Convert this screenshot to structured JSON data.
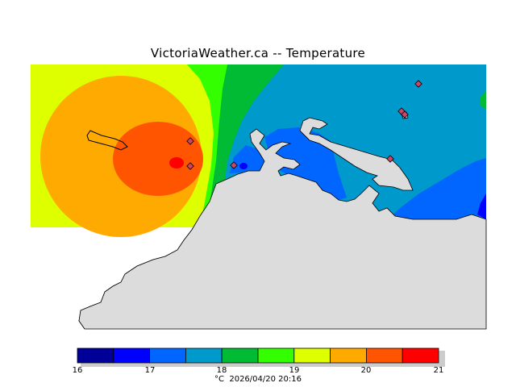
{
  "title": "VictoriaWeather.ca -- Temperature",
  "legend": {
    "ticks": [
      "16",
      "17",
      "18",
      "19",
      "20",
      "21"
    ],
    "unit": "°C",
    "timestamp": "2026/04/20 20:16",
    "bins": [
      {
        "range": [
          16.0,
          16.5
        ],
        "color": "#000099"
      },
      {
        "range": [
          16.5,
          17.0
        ],
        "color": "#0000ff"
      },
      {
        "range": [
          17.0,
          17.5
        ],
        "color": "#0066ff"
      },
      {
        "range": [
          17.5,
          18.0
        ],
        "color": "#0099cc"
      },
      {
        "range": [
          18.0,
          18.5
        ],
        "color": "#00bb33"
      },
      {
        "range": [
          18.5,
          19.0
        ],
        "color": "#33ff00"
      },
      {
        "range": [
          19.0,
          19.5
        ],
        "color": "#ddff00"
      },
      {
        "range": [
          19.5,
          20.0
        ],
        "color": "#ffaa00"
      },
      {
        "range": [
          20.0,
          20.5
        ],
        "color": "#ff5500"
      },
      {
        "range": [
          20.5,
          21.0
        ],
        "color": "#ff0000"
      }
    ]
  },
  "colors": {
    "land": "#dcdcdc",
    "coastline": "#000000",
    "station_marker": "#cc4466"
  },
  "stations": [
    "station-1",
    "station-2",
    "station-3",
    "station-4",
    "station-5",
    "station-6",
    "station-7"
  ]
}
